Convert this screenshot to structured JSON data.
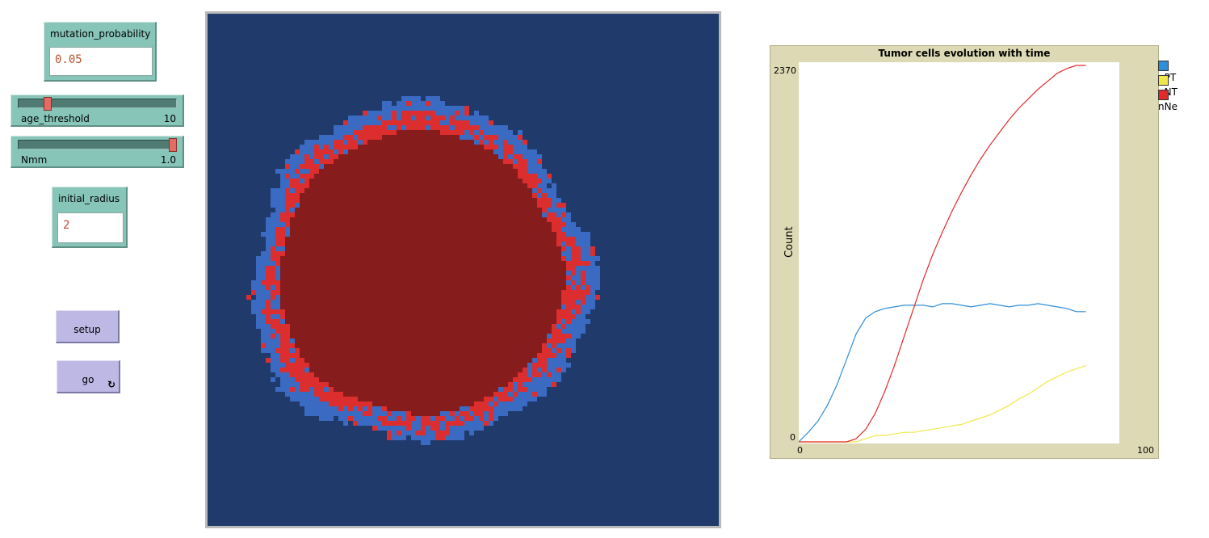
{
  "controls": {
    "mutation_probability": {
      "label": "mutation_probability",
      "value": "0.05"
    },
    "age_threshold": {
      "label": "age_threshold",
      "value": "10",
      "fraction": 0.2
    },
    "nmm": {
      "label": "Nmm",
      "value": "1.0",
      "fraction": 1.0
    },
    "initial_radius": {
      "label": "initial_radius",
      "value": "2"
    },
    "setup_label": "setup",
    "go_label": "go"
  },
  "world": {
    "colors": {
      "background": "#1f3a6b",
      "proliferating": "#3b6ac3",
      "mutated": "#dc2e2e",
      "necrotic": "#871c1c"
    }
  },
  "chart_data": {
    "type": "line",
    "title": "Tumor cells evolution with time",
    "xlabel": "",
    "ylabel": "Count",
    "xlim": [
      0,
      100
    ],
    "ylim": [
      0,
      2370
    ],
    "xtick_labels": [
      "0",
      "100"
    ],
    "ytick_labels": [
      "0",
      "2370"
    ],
    "legend_position": "top-right",
    "series": [
      {
        "name": "nPT",
        "color": "#2f8ed8",
        "x": [
          0,
          3,
          6,
          9,
          12,
          15,
          18,
          21,
          24,
          27,
          30,
          33,
          36,
          39,
          42,
          45,
          48,
          51,
          54,
          57,
          60,
          63,
          66,
          69,
          72,
          75,
          78,
          81,
          84,
          87,
          90
        ],
        "y": [
          0,
          60,
          130,
          230,
          360,
          520,
          680,
          780,
          820,
          840,
          850,
          860,
          860,
          860,
          850,
          870,
          870,
          860,
          850,
          860,
          870,
          860,
          850,
          860,
          860,
          870,
          860,
          850,
          840,
          820,
          820
        ]
      },
      {
        "name": "nNT",
        "color": "#f0e84a",
        "x": [
          0,
          12,
          15,
          18,
          21,
          24,
          27,
          30,
          33,
          36,
          39,
          42,
          45,
          48,
          51,
          54,
          57,
          60,
          63,
          66,
          69,
          72,
          75,
          78,
          81,
          84,
          87,
          90
        ],
        "y": [
          0,
          0,
          0,
          0,
          20,
          40,
          40,
          50,
          60,
          60,
          70,
          80,
          90,
          100,
          110,
          130,
          150,
          170,
          200,
          230,
          270,
          300,
          340,
          380,
          410,
          440,
          460,
          480
        ]
      },
      {
        "name": "nNe",
        "color": "#e22a2a",
        "x": [
          0,
          12,
          15,
          18,
          21,
          24,
          27,
          30,
          33,
          36,
          39,
          42,
          45,
          48,
          51,
          54,
          57,
          60,
          63,
          66,
          69,
          72,
          75,
          78,
          81,
          84,
          87,
          90
        ],
        "y": [
          0,
          0,
          0,
          20,
          80,
          180,
          320,
          480,
          660,
          840,
          1020,
          1180,
          1320,
          1450,
          1570,
          1680,
          1780,
          1870,
          1950,
          2030,
          2100,
          2160,
          2220,
          2270,
          2320,
          2350,
          2370,
          2370
        ]
      }
    ]
  }
}
